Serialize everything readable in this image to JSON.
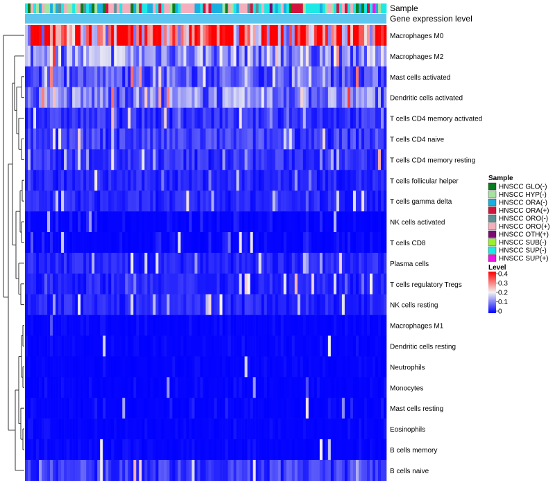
{
  "chart_data": {
    "type": "heatmap",
    "title": "",
    "annotation_tracks": [
      "Sample",
      "Gene expression level"
    ],
    "rows": [
      "Macrophages M0",
      "Macrophages M2",
      "Mast cells activated",
      "Dendritic cells activated",
      "T cells CD4 memory activated",
      "T cells CD4 naive",
      "T cells CD4 memory resting",
      "T cells follicular helper",
      "T cells gamma delta",
      "NK cells activated",
      "T cells CD8",
      "Plasma cells",
      "T cells regulatory  Tregs",
      "NK cells resting",
      "Macrophages M1",
      "Dendritic cells resting",
      "Neutrophils",
      "Monocytes",
      "Mast cells resting",
      "Eosinophils",
      "B cells memory",
      "B cells naive"
    ],
    "row_mean_levels": [
      0.3,
      0.12,
      0.07,
      0.1,
      0.04,
      0.05,
      0.04,
      0.03,
      0.03,
      0.02,
      0.02,
      0.03,
      0.03,
      0.03,
      0.01,
      0.01,
      0.01,
      0.01,
      0.02,
      0.01,
      0.01,
      0.05
    ],
    "n_samples": 130,
    "sample_legend": {
      "title": "Sample",
      "entries": [
        {
          "label": "HNSCC GLO(-)",
          "color": "#0a7d1e"
        },
        {
          "label": "HNSCC HYP(-)",
          "color": "#a6e3a1"
        },
        {
          "label": "HNSCC ORA(-)",
          "color": "#19aee0"
        },
        {
          "label": "HNSCC ORA(+)",
          "color": "#d2143c"
        },
        {
          "label": "HNSCC ORO(-)",
          "color": "#5f8f95"
        },
        {
          "label": "HNSCC ORO(+)",
          "color": "#f4aebd"
        },
        {
          "label": "HNSCC OTH(+)",
          "color": "#7a0a73"
        },
        {
          "label": "HNSCC SUB(-)",
          "color": "#9bef2e"
        },
        {
          "label": "HNSCC SUP(-)",
          "color": "#1de9e6"
        },
        {
          "label": "HNSCC SUP(+)",
          "color": "#f014e8"
        }
      ]
    },
    "level_legend": {
      "title": "Level",
      "min": 0,
      "max": 0.4,
      "ticks": [
        "0.4",
        "0.3",
        "0.2",
        "0.1",
        "0"
      ],
      "colors": {
        "low": "#0000ff",
        "mid": "#f2f2f2",
        "high": "#ff0000"
      }
    },
    "expression_track_color": "#5ec6ee"
  }
}
